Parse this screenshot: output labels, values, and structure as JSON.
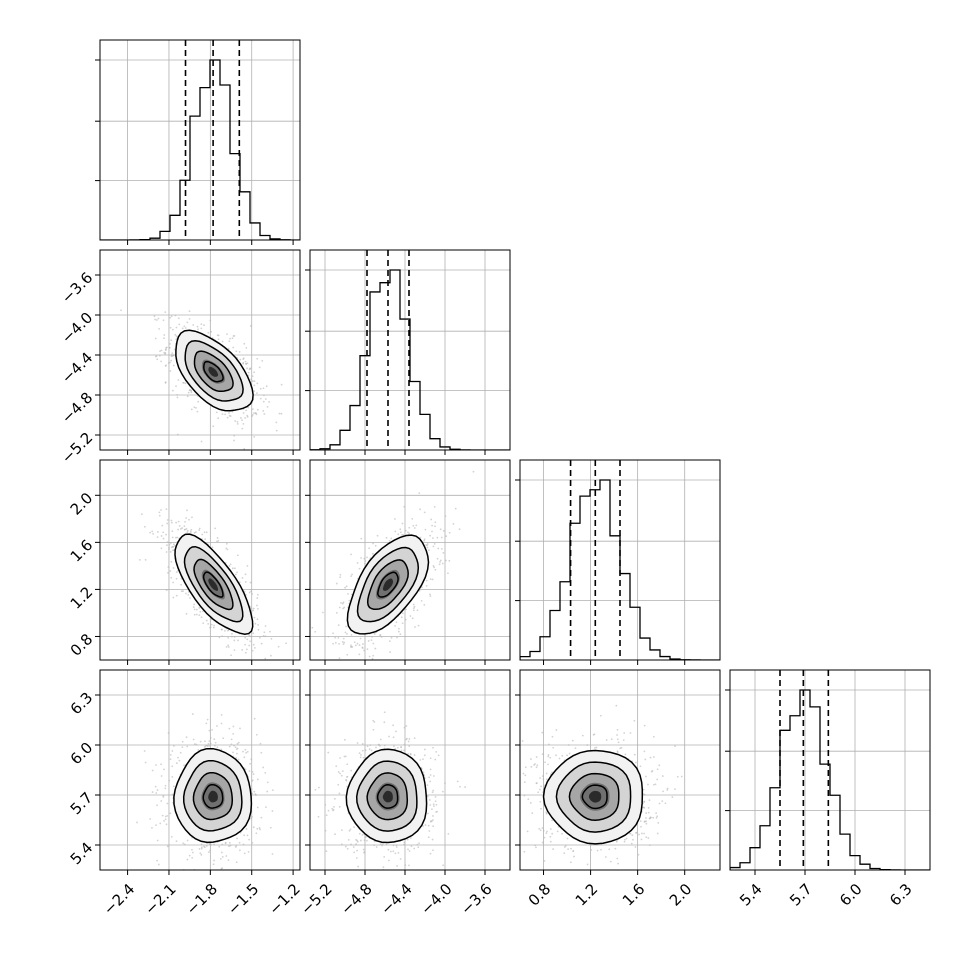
{
  "chart_data": {
    "type": "corner",
    "grid": true,
    "parameters": [
      {
        "index": 0,
        "range": [
          -2.6,
          -1.15
        ],
        "ticks": [
          -2.4,
          -2.1,
          -1.8,
          -1.5,
          -1.2
        ],
        "tick_labels": [
          "−2.4",
          "−2.1",
          "−1.8",
          "−1.5",
          "−1.2"
        ],
        "mean": -1.78,
        "sd": 0.14,
        "quantiles": [
          -1.98,
          -1.78,
          -1.59
        ]
      },
      {
        "index": 1,
        "range": [
          -5.35,
          -3.35
        ],
        "ticks": [
          -5.2,
          -4.8,
          -4.4,
          -4.0,
          -3.6
        ],
        "tick_labels": [
          "−5.2",
          "−4.8",
          "−4.4",
          "−4.0",
          "−3.6"
        ],
        "mean": -4.57,
        "sd": 0.2,
        "quantiles": [
          -4.78,
          -4.57,
          -4.36
        ]
      },
      {
        "index": 2,
        "range": [
          0.6,
          2.3
        ],
        "ticks": [
          0.8,
          1.2,
          1.6,
          2.0
        ],
        "tick_labels": [
          "0.8",
          "1.2",
          "1.6",
          "2.0"
        ],
        "mean": 1.24,
        "sd": 0.21,
        "quantiles": [
          1.03,
          1.24,
          1.45
        ]
      },
      {
        "index": 3,
        "range": [
          5.25,
          6.45
        ],
        "ticks": [
          5.4,
          5.7,
          6.0,
          6.3
        ],
        "tick_labels": [
          "5.4",
          "5.7",
          "6.0",
          "6.3"
        ],
        "mean": 5.69,
        "sd": 0.14,
        "quantiles": [
          5.55,
          5.69,
          5.84
        ]
      }
    ],
    "correlations": [
      {
        "pair": [
          0,
          1
        ],
        "rho": -0.55
      },
      {
        "pair": [
          0,
          2
        ],
        "rho": -0.72
      },
      {
        "pair": [
          1,
          2
        ],
        "rho": 0.58
      },
      {
        "pair": [
          0,
          3
        ],
        "rho": 0.0
      },
      {
        "pair": [
          1,
          3
        ],
        "rho": 0.0
      },
      {
        "pair": [
          2,
          3
        ],
        "rho": 0.0
      }
    ],
    "contour_levels_sigma": [
      0.5,
      1.0,
      1.5,
      2.0
    ]
  }
}
